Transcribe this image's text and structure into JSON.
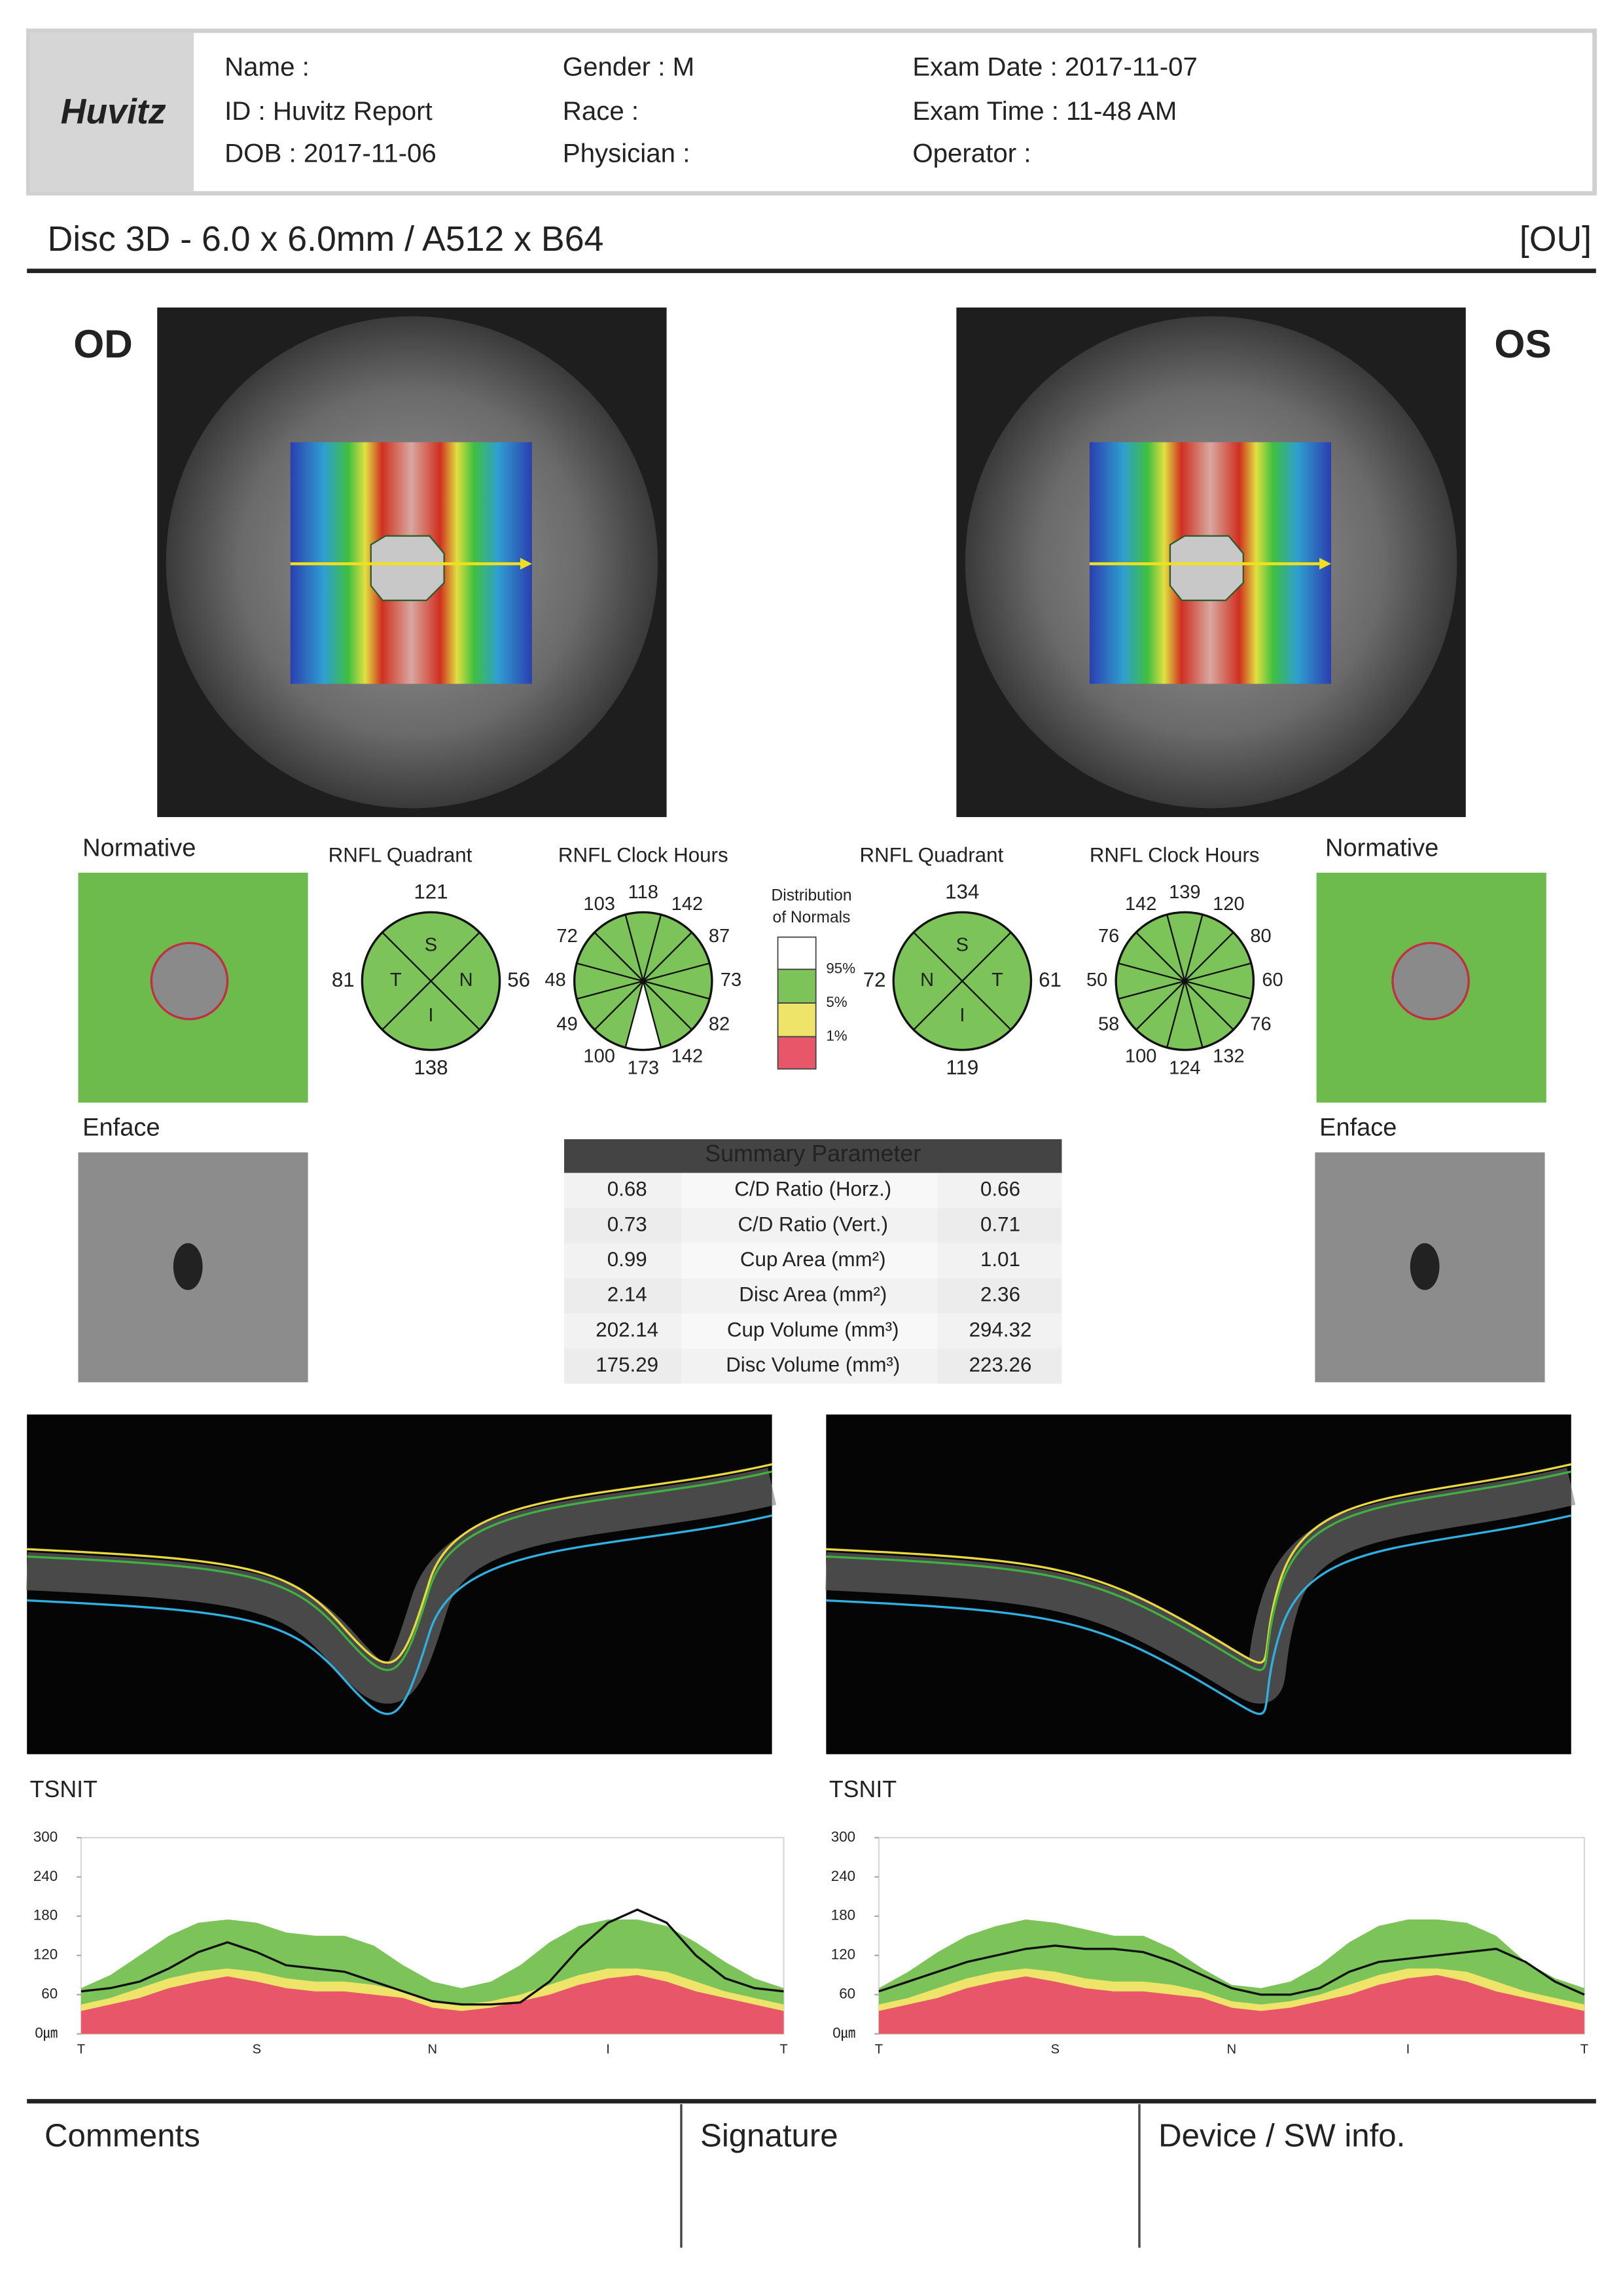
{
  "header": {
    "logo": "Huvitz",
    "fields": [
      [
        "Name :",
        "ID : Huvitz Report",
        "DOB : 2017-11-06"
      ],
      [
        "Gender : M",
        "Race :",
        "Physician :"
      ],
      [
        "Exam Date : 2017-11-07",
        "Exam Time : 11-48 AM",
        "Operator :"
      ]
    ]
  },
  "scan": {
    "title": "Disc 3D - 6.0 x 6.0mm / A512 x B64",
    "eye": "[OU]"
  },
  "legend": {
    "title": [
      "Distribution",
      "of Normals"
    ],
    "colors": [
      "#ffffff",
      "#7cc35a",
      "#efe46a",
      "#e8566a"
    ],
    "labels": [
      "95%",
      "5%",
      "1%"
    ]
  },
  "summary": {
    "title": "Summary Parameter",
    "rows": [
      {
        "od": 0.68,
        "name": "C/D Ratio (Horz.)",
        "os": 0.66
      },
      {
        "od": 0.73,
        "name": "C/D Ratio (Vert.)",
        "os": 0.71
      },
      {
        "od": 0.99,
        "name": "Cup Area (mm²)",
        "os": 1.01
      },
      {
        "od": 2.14,
        "name": "Disc Area (mm²)",
        "os": 2.36
      },
      {
        "od": 202.14,
        "name": "Cup Volume (mm³)",
        "os": 294.32
      },
      {
        "od": 175.29,
        "name": "Disc Volume (mm³)",
        "os": 223.26
      }
    ]
  },
  "eyes": [
    {
      "label": "OD",
      "normative": "Normative",
      "enface": "Enface",
      "quadrant": {
        "title": "RNFL Quadrant",
        "labels": [
          "S",
          "T",
          "N",
          "I"
        ],
        "values": [
          121,
          81,
          56,
          138
        ],
        "colors": [
          "#7cc35a",
          "#7cc35a",
          "#7cc35a",
          "#7cc35a"
        ]
      },
      "clock": {
        "title": "RNFL Clock Hours",
        "values": [
          118,
          142,
          87,
          73,
          82,
          142,
          173,
          100,
          49,
          48,
          72,
          103
        ],
        "colors": [
          "#7cc35a",
          "#7cc35a",
          "#7cc35a",
          "#7cc35a",
          "#7cc35a",
          "#7cc35a",
          "#ffffff",
          "#7cc35a",
          "#7cc35a",
          "#7cc35a",
          "#7cc35a",
          "#7cc35a"
        ]
      },
      "tsnit": {
        "type": "line",
        "title": "TSNIT",
        "categories": [
          "T",
          null,
          null,
          null,
          null,
          null,
          "S",
          null,
          null,
          null,
          null,
          null,
          "N",
          null,
          null,
          null,
          null,
          null,
          "I",
          null,
          null,
          null,
          null,
          null,
          "T"
        ],
        "ylim": [
          0,
          300
        ],
        "yticks": [
          {
            "value": 0,
            "label": "0㎛"
          },
          60,
          120,
          180,
          240,
          300
        ],
        "bands": [
          {
            "color": "#7cc35a",
            "values": [
              70,
              90,
              120,
              150,
              170,
              175,
              170,
              155,
              150,
              150,
              135,
              105,
              80,
              70,
              80,
              105,
              140,
              165,
              175,
              175,
              165,
              140,
              110,
              85,
              70
            ]
          },
          {
            "color": "#efe46a",
            "values": [
              45,
              55,
              70,
              85,
              95,
              100,
              95,
              85,
              80,
              80,
              75,
              65,
              50,
              45,
              50,
              60,
              75,
              90,
              100,
              100,
              95,
              80,
              65,
              55,
              45
            ]
          },
          {
            "color": "#e8566a",
            "values": [
              35,
              45,
              55,
              70,
              80,
              88,
              80,
              70,
              65,
              65,
              60,
              55,
              40,
              35,
              40,
              50,
              60,
              75,
              85,
              90,
              80,
              65,
              55,
              45,
              35
            ]
          }
        ],
        "series": [
          {
            "color": "#111111",
            "values": [
              65,
              70,
              80,
              100,
              125,
              140,
              125,
              105,
              100,
              95,
              80,
              65,
              50,
              45,
              45,
              48,
              80,
              130,
              170,
              190,
              170,
              120,
              85,
              70,
              65
            ]
          }
        ]
      }
    },
    {
      "label": "OS",
      "normative": "Normative",
      "enface": "Enface",
      "quadrant": {
        "title": "RNFL Quadrant",
        "labels": [
          "S",
          "N",
          "T",
          "I"
        ],
        "values": [
          134,
          72,
          61,
          119
        ],
        "colors": [
          "#7cc35a",
          "#7cc35a",
          "#7cc35a",
          "#7cc35a"
        ]
      },
      "clock": {
        "title": "RNFL Clock Hours",
        "values": [
          139,
          120,
          80,
          60,
          76,
          132,
          124,
          100,
          58,
          50,
          76,
          142
        ],
        "colors": [
          "#7cc35a",
          "#7cc35a",
          "#7cc35a",
          "#7cc35a",
          "#7cc35a",
          "#7cc35a",
          "#7cc35a",
          "#7cc35a",
          "#7cc35a",
          "#7cc35a",
          "#7cc35a",
          "#7cc35a"
        ]
      },
      "tsnit": {
        "type": "line",
        "title": "TSNIT",
        "categories": [
          "T",
          null,
          null,
          null,
          null,
          null,
          "S",
          null,
          null,
          null,
          null,
          null,
          "N",
          null,
          null,
          null,
          null,
          null,
          "I",
          null,
          null,
          null,
          null,
          null,
          "T"
        ],
        "ylim": [
          0,
          300
        ],
        "yticks": [
          {
            "value": 0,
            "label": "0㎛"
          },
          60,
          120,
          180,
          240,
          300
        ],
        "bands": [
          {
            "color": "#7cc35a",
            "values": [
              70,
              95,
              125,
              150,
              165,
              175,
              170,
              160,
              150,
              150,
              130,
              100,
              75,
              70,
              80,
              105,
              140,
              165,
              175,
              175,
              170,
              150,
              110,
              85,
              70
            ]
          },
          {
            "color": "#efe46a",
            "values": [
              45,
              55,
              70,
              85,
              95,
              100,
              95,
              85,
              80,
              80,
              75,
              65,
              50,
              45,
              50,
              60,
              75,
              90,
              100,
              100,
              95,
              80,
              65,
              55,
              45
            ]
          },
          {
            "color": "#e8566a",
            "values": [
              35,
              45,
              55,
              70,
              80,
              88,
              80,
              70,
              65,
              65,
              60,
              55,
              40,
              35,
              40,
              50,
              60,
              75,
              85,
              90,
              80,
              65,
              55,
              45,
              35
            ]
          }
        ],
        "series": [
          {
            "color": "#111111",
            "values": [
              65,
              80,
              95,
              110,
              120,
              130,
              135,
              130,
              130,
              125,
              110,
              90,
              70,
              60,
              60,
              70,
              95,
              110,
              115,
              120,
              125,
              130,
              110,
              80,
              60
            ]
          }
        ]
      }
    }
  ],
  "footer": {
    "sections": [
      "Comments",
      "Signature",
      "Device / SW info."
    ]
  }
}
